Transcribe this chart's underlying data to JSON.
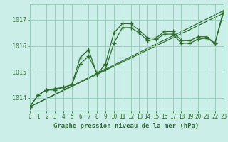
{
  "title": "Graphe pression niveau de la mer (hPa)",
  "background_color": "#cceee8",
  "grid_color": "#99ccbb",
  "line_color": "#2d6e2d",
  "xlim": [
    0,
    23
  ],
  "ylim": [
    1013.5,
    1017.6
  ],
  "yticks": [
    1014,
    1015,
    1016,
    1017
  ],
  "xticks": [
    0,
    1,
    2,
    3,
    4,
    5,
    6,
    7,
    8,
    9,
    10,
    11,
    12,
    13,
    14,
    15,
    16,
    17,
    18,
    19,
    20,
    21,
    22,
    23
  ],
  "series1_x": [
    0,
    1,
    2,
    3,
    4,
    5,
    6,
    7,
    8,
    9,
    10,
    11,
    12,
    13,
    14,
    15,
    16,
    17,
    18,
    19,
    20,
    21,
    22,
    23
  ],
  "series1_y": [
    1013.65,
    1014.1,
    1014.3,
    1014.3,
    1014.4,
    1014.5,
    1015.55,
    1015.85,
    1014.9,
    1015.3,
    1016.5,
    1016.85,
    1016.85,
    1016.6,
    1016.3,
    1016.3,
    1016.55,
    1016.55,
    1016.2,
    1016.2,
    1016.35,
    1016.35,
    1016.1,
    1017.35
  ],
  "series2_x": [
    0,
    1,
    2,
    3,
    4,
    5,
    6,
    7,
    8,
    9,
    10,
    11,
    12,
    13,
    14,
    15,
    16,
    17,
    18,
    19,
    20,
    21,
    22,
    23
  ],
  "series2_y": [
    1013.65,
    1014.1,
    1014.3,
    1014.35,
    1014.4,
    1014.5,
    1015.3,
    1015.6,
    1014.95,
    1015.1,
    1016.1,
    1016.7,
    1016.7,
    1016.5,
    1016.2,
    1016.25,
    1016.45,
    1016.45,
    1016.1,
    1016.1,
    1016.25,
    1016.3,
    1016.1,
    1017.25
  ],
  "series3_x": [
    0,
    23
  ],
  "series3_y": [
    1013.65,
    1017.35
  ],
  "series4_x": [
    0,
    23
  ],
  "series4_y": [
    1013.65,
    1017.25
  ]
}
